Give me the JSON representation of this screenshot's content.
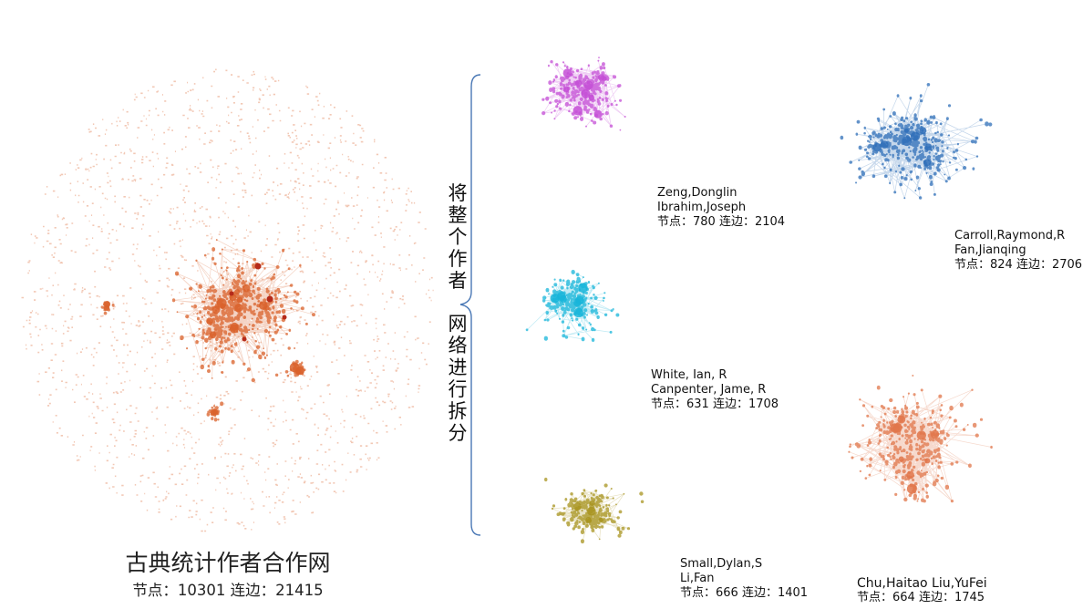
{
  "main_network": {
    "title": "古典统计作者合作网",
    "stats": "节点：10301  连边：21415",
    "color": "#d9622b"
  },
  "split_label": {
    "part1": "将整个作者",
    "part2": "网络进行拆分",
    "bracket_color": "#4a78b5"
  },
  "subnetworks": [
    {
      "authors": [
        "Zeng,Donglin",
        "Ibrahim,Joseph"
      ],
      "stats": "节点：780 连边：2104",
      "color": "#c44fd6"
    },
    {
      "authors": [
        "Carroll,Raymond,R",
        "Fan,Jianqing"
      ],
      "stats": "节点：824 连边：2706",
      "color": "#2f6fb8"
    },
    {
      "authors": [
        "White, Ian, R",
        "Canpenter, Jame, R"
      ],
      "stats": "节点：631 连边：1708",
      "color": "#18b5d9"
    },
    {
      "authors": [
        "Small,Dylan,S",
        "Li,Fan"
      ],
      "stats": "节点：666 连边：1401",
      "color": "#a89420"
    },
    {
      "authors": [
        "Chu,Haitao  Liu,YuFei"
      ],
      "stats": "节点：664 连边：1745",
      "color": "#e0764a"
    }
  ]
}
